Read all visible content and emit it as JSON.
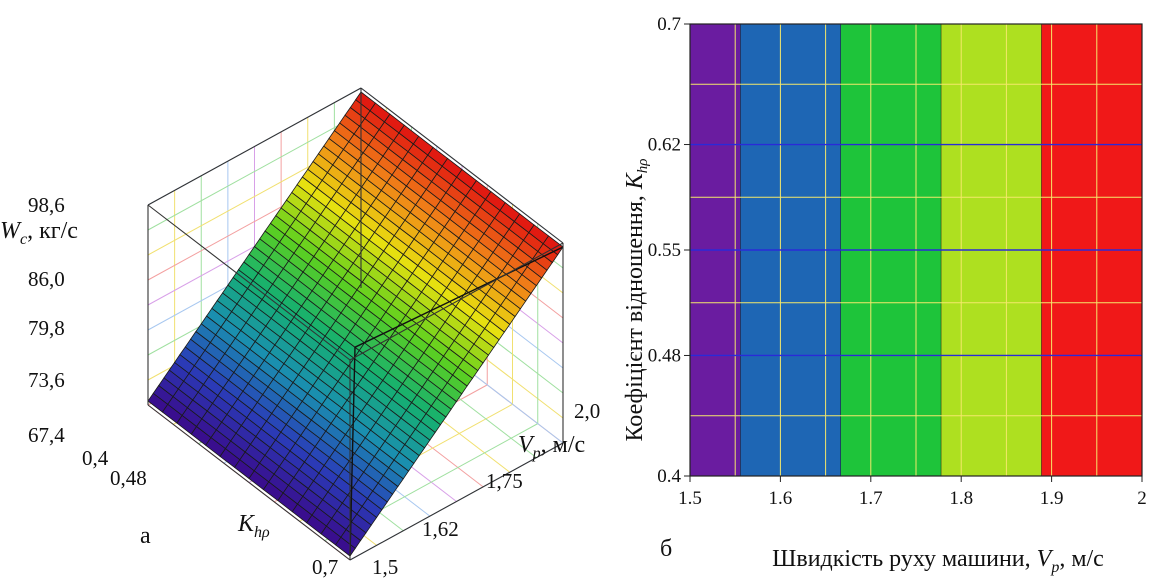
{
  "panel_a": {
    "letter": "а",
    "z_axis_label": {
      "sym": "W",
      "sub": "c",
      "rest": ", кг/с"
    },
    "z_ticks": [
      "98,6",
      "86,0",
      "79,8",
      "73,6",
      "67,4"
    ],
    "k_axis_label": {
      "sym": "K",
      "sub": "hρ"
    },
    "k_ticks": [
      "0,4",
      "0,48",
      "0,7"
    ],
    "v_axis_label": {
      "sym": "V",
      "sub": "p",
      "rest": ", м/с"
    },
    "v_ticks": [
      "2,0",
      "1,75",
      "1,62",
      "1,5"
    ]
  },
  "panel_b": {
    "letter": "б",
    "y_label": {
      "text": "Коефіцієнт відношення, ",
      "sym": "K",
      "sub": "hρ"
    },
    "x_label": {
      "text": "Швидкість руху машини, ",
      "sym": "V",
      "sub": "p",
      "rest": ", м/с"
    }
  },
  "chart_data": [
    {
      "type": "surface",
      "x_name": "K_hρ",
      "y_name": "V_p",
      "z_name": "W_c",
      "x_range": [
        0.4,
        0.7
      ],
      "y_range": [
        1.5,
        2.0
      ],
      "z_range": [
        67.4,
        98.6
      ],
      "z_ticks": [
        98.6,
        86.0,
        79.8,
        73.6,
        67.4
      ],
      "x_ticks": [
        0.4,
        0.48,
        0.7
      ],
      "y_ticks": [
        2.0,
        1.75,
        1.62,
        1.5
      ],
      "colormap": [
        "#3a0a8a",
        "#2a3cb8",
        "#1a8fb0",
        "#16b070",
        "#5cd020",
        "#e8e010",
        "#f08018",
        "#e01010"
      ]
    },
    {
      "type": "heatmap",
      "x_range": [
        1.5,
        2.0
      ],
      "y_range": [
        0.4,
        0.7
      ],
      "x_ticks": [
        "1.5",
        "1.6",
        "1.7",
        "1.8",
        "1.9",
        "2"
      ],
      "y_ticks": [
        "0.4",
        "0.48",
        "0.55",
        "0.62",
        "0.7"
      ],
      "bands": [
        {
          "x0": 1.5,
          "x1": 1.556,
          "color": "#6a1ca0"
        },
        {
          "x0": 1.556,
          "x1": 1.667,
          "color": "#1e66b4"
        },
        {
          "x0": 1.667,
          "x1": 1.778,
          "color": "#1ec43a"
        },
        {
          "x0": 1.778,
          "x1": 1.889,
          "color": "#aee020"
        },
        {
          "x0": 1.889,
          "x1": 2.0,
          "color": "#f01818"
        }
      ],
      "grid": true
    }
  ]
}
